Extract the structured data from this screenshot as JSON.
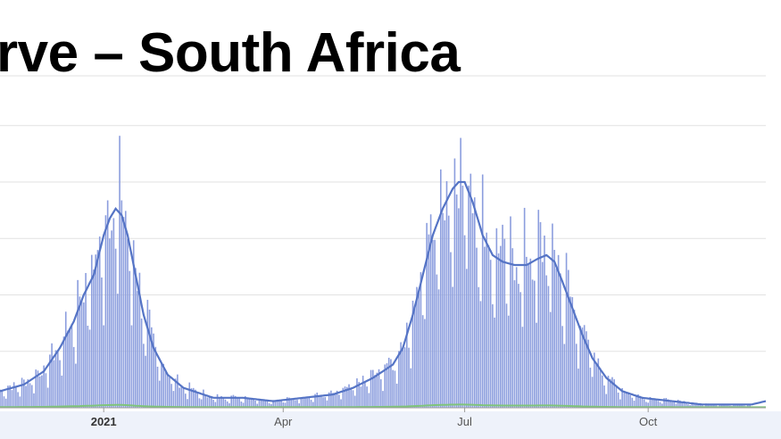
{
  "title": "rve – South Africa",
  "colors": {
    "bar": "#8c9ede",
    "trend": "#5574c5",
    "baseline_series": "#7fc47a",
    "grid": "#e2e2e2",
    "axis": "#9a9a9a"
  },
  "chart_data": {
    "type": "bar",
    "title": "rve – South Africa",
    "x_tick_labels": [
      "2021",
      "Apr",
      "Jul",
      "Oct"
    ],
    "x_tick_days": [
      0,
      90,
      181,
      273
    ],
    "x_range_days": [
      -52,
      332
    ],
    "ylim": [
      0,
      100
    ],
    "grid_lines": [
      0,
      17,
      34,
      51,
      68,
      85,
      100
    ],
    "grid": true,
    "legend": "none",
    "bar_x_step_days": 1,
    "trend_points": [
      [
        -52,
        5
      ],
      [
        -40,
        7
      ],
      [
        -30,
        11
      ],
      [
        -22,
        18
      ],
      [
        -15,
        26
      ],
      [
        -10,
        34
      ],
      [
        -5,
        40
      ],
      [
        0,
        52
      ],
      [
        3,
        57
      ],
      [
        6,
        60
      ],
      [
        9,
        58
      ],
      [
        12,
        52
      ],
      [
        16,
        40
      ],
      [
        20,
        28
      ],
      [
        25,
        18
      ],
      [
        32,
        10
      ],
      [
        40,
        6
      ],
      [
        55,
        3
      ],
      [
        70,
        3
      ],
      [
        85,
        2
      ],
      [
        100,
        3
      ],
      [
        115,
        4
      ],
      [
        125,
        6
      ],
      [
        135,
        9
      ],
      [
        145,
        13
      ],
      [
        150,
        18
      ],
      [
        155,
        28
      ],
      [
        160,
        40
      ],
      [
        165,
        52
      ],
      [
        170,
        60
      ],
      [
        175,
        66
      ],
      [
        178,
        68
      ],
      [
        181,
        68
      ],
      [
        185,
        62
      ],
      [
        190,
        52
      ],
      [
        195,
        46
      ],
      [
        200,
        44
      ],
      [
        206,
        43
      ],
      [
        212,
        43
      ],
      [
        218,
        45
      ],
      [
        222,
        46
      ],
      [
        226,
        44
      ],
      [
        230,
        38
      ],
      [
        235,
        30
      ],
      [
        240,
        22
      ],
      [
        245,
        15
      ],
      [
        252,
        9
      ],
      [
        260,
        5
      ],
      [
        270,
        3
      ],
      [
        285,
        2
      ],
      [
        300,
        1
      ],
      [
        315,
        1
      ],
      [
        325,
        1
      ],
      [
        332,
        2
      ]
    ]
  }
}
